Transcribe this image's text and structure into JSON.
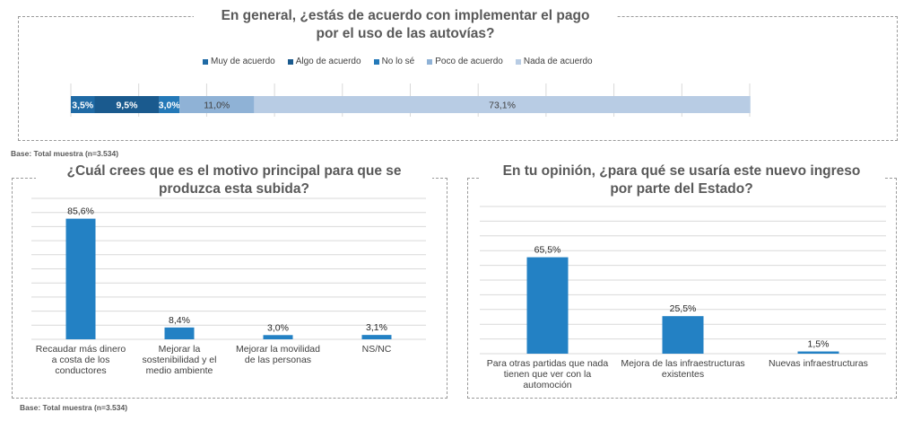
{
  "charts": [
    {
      "id": "payment-agreement",
      "title_lines": [
        "En general, ¿estás de acuerdo con implementar el pago",
        "por el uso de las autovías?"
      ],
      "legend": [
        {
          "label": "Muy de acuerdo",
          "color": "#1f6aa5"
        },
        {
          "label": "Algo de acuerdo",
          "color": "#1a5a8e"
        },
        {
          "label": "No lo sé",
          "color": "#2479b8"
        },
        {
          "label": "Poco de acuerdo",
          "color": "#8fb2d6"
        },
        {
          "label": "Nada de acuerdo",
          "color": "#b8cce4"
        }
      ]
    },
    {
      "id": "reason",
      "title_lines": [
        "¿Cuál crees que es el motivo principal para que se",
        "produzca esta subida?"
      ],
      "base_note": "Base: Total muestra (n=3.534)"
    },
    {
      "id": "use",
      "title_lines": [
        "En tu opinión, ¿para qué se usaría este nuevo ingreso",
        "por parte del Estado?"
      ]
    }
  ],
  "top_base_note": "Base: Total muestra (n=3.534)",
  "chart_data": [
    {
      "type": "bar",
      "orientation": "horizontal-stacked",
      "title": "En general, ¿estás de acuerdo con implementar el pago por el uso de las autovías?",
      "series": [
        {
          "name": "Muy de acuerdo",
          "values": [
            3.5
          ],
          "label": "3,5%",
          "color": "#1f6aa5"
        },
        {
          "name": "Algo de acuerdo",
          "values": [
            9.5
          ],
          "label": "9,5%",
          "color": "#1a5a8e"
        },
        {
          "name": "No lo sé",
          "values": [
            3.0
          ],
          "label": "3,0%",
          "color": "#2479b8"
        },
        {
          "name": "Poco de acuerdo",
          "values": [
            11.0
          ],
          "label": "11,0%",
          "color": "#8fb2d6"
        },
        {
          "name": "Nada de acuerdo",
          "values": [
            73.1
          ],
          "label": "73,1%",
          "color": "#b8cce4"
        }
      ],
      "xlim": [
        0,
        100
      ],
      "grid": true,
      "legend_position": "top"
    },
    {
      "type": "bar",
      "title": "¿Cuál crees que es el motivo principal para que se produzca esta subida?",
      "categories": [
        [
          "Recaudar más dinero",
          "a costa de los",
          "conductores"
        ],
        [
          "Mejorar la",
          "sostenibilidad y el",
          "medio ambiente"
        ],
        [
          "Mejorar la movilidad",
          "de las personas"
        ],
        [
          "NS/NC"
        ]
      ],
      "values": [
        85.6,
        8.4,
        3.0,
        3.1
      ],
      "labels": [
        "85,6%",
        "8,4%",
        "3,0%",
        "3,1%"
      ],
      "ylim": [
        0,
        100
      ],
      "grid": true,
      "color": "#2381c4"
    },
    {
      "type": "bar",
      "title": "En tu opinión, ¿para qué se usaría este nuevo ingreso por parte del Estado?",
      "categories": [
        [
          "Para otras partidas que nada",
          "tienen que ver con la",
          "automoción"
        ],
        [
          "Mejora de las infraestructuras",
          "existentes"
        ],
        [
          "Nuevas infraestructuras"
        ]
      ],
      "values": [
        65.5,
        25.5,
        1.5
      ],
      "labels": [
        "65,5%",
        "25,5%",
        "1,5%"
      ],
      "ylim": [
        0,
        100
      ],
      "grid": true,
      "color": "#2381c4"
    }
  ]
}
